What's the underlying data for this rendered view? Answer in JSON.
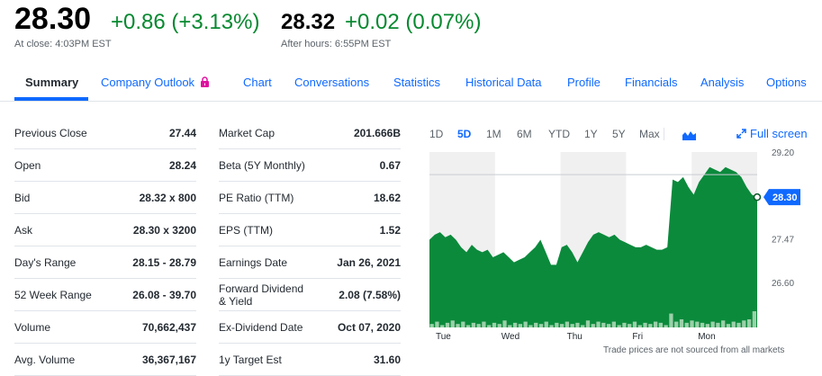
{
  "quote": {
    "price": "28.30",
    "change": "+0.86 (+3.13%)",
    "close_label": "At close: 4:03PM EST",
    "after_hours_price": "28.32",
    "after_hours_change": "+0.02 (0.07%)",
    "after_hours_label": "After hours: 6:55PM EST"
  },
  "tabs": [
    {
      "label": "Summary",
      "active": true
    },
    {
      "label": "Company Outlook",
      "locked": true
    },
    {
      "label": "Chart"
    },
    {
      "label": "Conversations"
    },
    {
      "label": "Statistics"
    },
    {
      "label": "Historical Data"
    },
    {
      "label": "Profile"
    },
    {
      "label": "Financials"
    },
    {
      "label": "Analysis"
    },
    {
      "label": "Options"
    }
  ],
  "left_table": [
    {
      "label": "Previous Close",
      "value": "27.44"
    },
    {
      "label": "Open",
      "value": "28.24"
    },
    {
      "label": "Bid",
      "value": "28.32 x 800"
    },
    {
      "label": "Ask",
      "value": "28.30 x 3200"
    },
    {
      "label": "Day's Range",
      "value": "28.15 - 28.79"
    },
    {
      "label": "52 Week Range",
      "value": "26.08 - 39.70"
    },
    {
      "label": "Volume",
      "value": "70,662,437"
    },
    {
      "label": "Avg. Volume",
      "value": "36,367,167"
    }
  ],
  "right_table": [
    {
      "label": "Market Cap",
      "value": "201.666B"
    },
    {
      "label": "Beta (5Y Monthly)",
      "value": "0.67"
    },
    {
      "label": "PE Ratio (TTM)",
      "value": "18.62"
    },
    {
      "label": "EPS (TTM)",
      "value": "1.52"
    },
    {
      "label": "Earnings Date",
      "value": "Jan 26, 2021"
    },
    {
      "label": "Forward Dividend & Yield",
      "value": "2.08 (7.58%)"
    },
    {
      "label": "Ex-Dividend Date",
      "value": "Oct 07, 2020"
    },
    {
      "label": "1y Target Est",
      "value": "31.60"
    }
  ],
  "chart_controls": {
    "ranges": [
      "1D",
      "5D",
      "1M",
      "6M",
      "YTD",
      "1Y",
      "5Y",
      "Max"
    ],
    "active_range": "5D",
    "chart_type_icon": "mountain-chart-icon",
    "full_screen_label": "Full screen",
    "footnote": "Trade prices are not sourced from all markets"
  },
  "colors": {
    "up": "#078930",
    "link": "#0f69ff",
    "area_fill": "#0b8a3c",
    "price_tag": "#0f69ff"
  },
  "chart_data": {
    "type": "area",
    "x_labels": [
      "Tue",
      "Wed",
      "Thu",
      "Fri",
      "Mon"
    ],
    "y_ticks": [
      "29.20",
      "27.47",
      "26.60"
    ],
    "y_tick_values": [
      29.2,
      27.47,
      26.6
    ],
    "ylim": [
      25.7,
      29.2
    ],
    "current_price_label": "28.30",
    "current_price": 28.3,
    "reference_line": 28.75,
    "grid": false,
    "series": [
      {
        "name": "",
        "values": [
          27.45,
          27.55,
          27.6,
          27.5,
          27.55,
          27.45,
          27.3,
          27.2,
          27.35,
          27.25,
          27.2,
          27.25,
          27.1,
          27.15,
          27.2,
          27.1,
          27.0,
          27.05,
          27.1,
          27.2,
          27.3,
          27.45,
          27.2,
          26.95,
          26.95,
          27.3,
          27.35,
          27.2,
          27.0,
          27.2,
          27.4,
          27.55,
          27.6,
          27.55,
          27.5,
          27.55,
          27.45,
          27.4,
          27.35,
          27.3,
          27.3,
          27.35,
          27.3,
          27.25,
          27.25,
          27.3,
          28.65,
          28.6,
          28.7,
          28.5,
          28.35,
          28.6,
          28.75,
          28.9,
          28.85,
          28.8,
          28.9,
          28.85,
          28.8,
          28.7,
          28.5,
          28.35,
          28.3
        ]
      },
      {
        "name": "",
        "values": [
          3,
          5,
          2,
          4,
          6,
          3,
          5,
          2,
          4,
          3,
          5,
          2,
          4,
          3,
          6,
          2,
          4,
          3,
          5,
          2,
          4,
          3,
          5,
          2,
          4,
          3,
          5,
          3,
          4,
          2,
          6,
          3,
          5,
          4,
          3,
          5,
          2,
          4,
          3,
          5,
          2,
          4,
          3,
          5,
          4,
          2,
          12,
          5,
          7,
          4,
          6,
          5,
          4,
          3,
          5,
          4,
          6,
          3,
          5,
          4,
          6,
          7,
          14
        ]
      }
    ]
  }
}
